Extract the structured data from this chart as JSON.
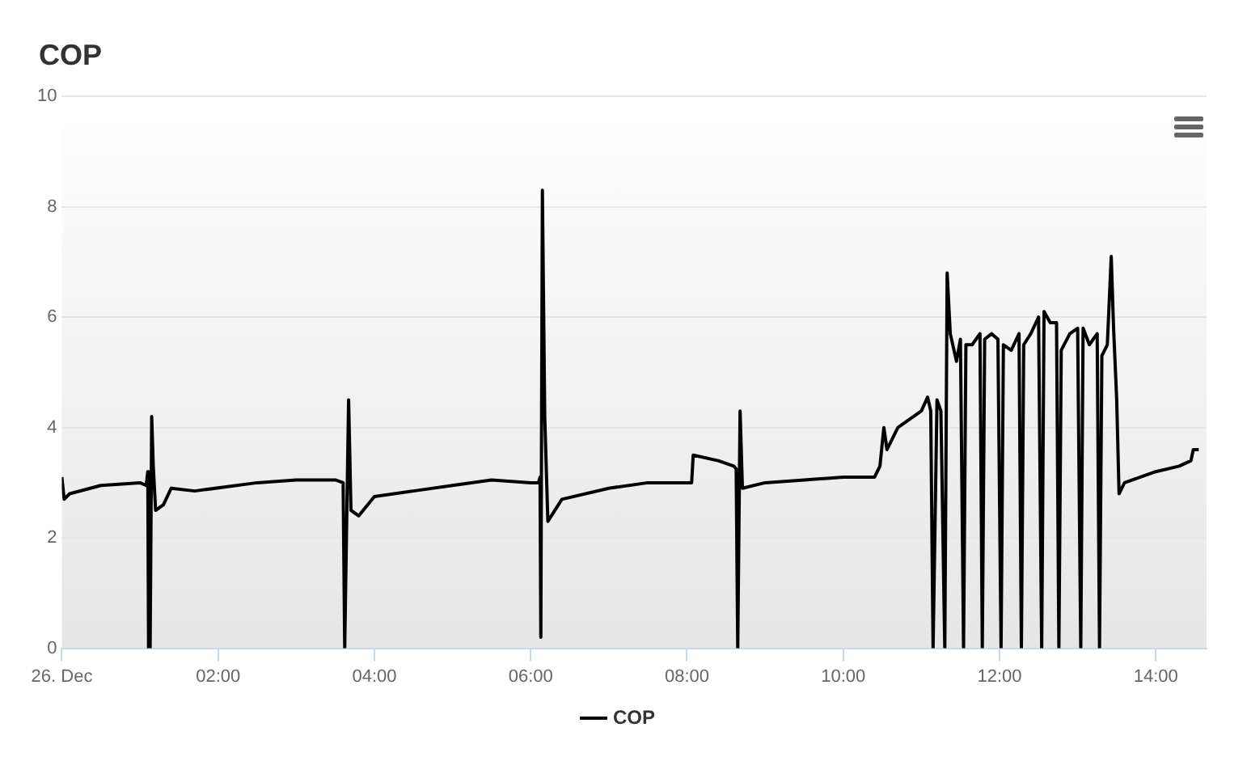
{
  "chart_data": {
    "type": "line",
    "title": "COP",
    "legend": "bottom",
    "grid": "y",
    "xlim": [
      0,
      14.65
    ],
    "xticks": [
      {
        "value": 0,
        "label": "26. Dec"
      },
      {
        "value": 2,
        "label": "02:00"
      },
      {
        "value": 4,
        "label": "04:00"
      },
      {
        "value": 6,
        "label": "06:00"
      },
      {
        "value": 8,
        "label": "08:00"
      },
      {
        "value": 10,
        "label": "10:00"
      },
      {
        "value": 12,
        "label": "12:00"
      },
      {
        "value": 14,
        "label": "14:00"
      }
    ],
    "ylim": [
      0,
      10
    ],
    "yticks": [
      0,
      2,
      4,
      6,
      8,
      10
    ],
    "series": [
      {
        "name": "COP",
        "color": "#000000",
        "x": [
          0,
          0.03,
          0.1,
          0.5,
          1.0,
          1.08,
          1.1,
          1.11,
          1.13,
          1.15,
          1.17,
          1.2,
          1.3,
          1.4,
          1.7,
          2.5,
          3.0,
          3.5,
          3.6,
          3.62,
          3.64,
          3.67,
          3.7,
          3.8,
          4.0,
          4.5,
          5.0,
          5.5,
          6.0,
          6.1,
          6.12,
          6.13,
          6.15,
          6.18,
          6.22,
          6.4,
          7.0,
          7.5,
          8.0,
          8.06,
          8.08,
          8.4,
          8.6,
          8.63,
          8.65,
          8.68,
          8.71,
          9.0,
          9.5,
          10.0,
          10.4,
          10.47,
          10.52,
          10.56,
          10.7,
          11.0,
          11.08,
          11.12,
          11.15,
          11.2,
          11.25,
          11.3,
          11.33,
          11.37,
          11.45,
          11.5,
          11.54,
          11.57,
          11.65,
          11.75,
          11.78,
          11.81,
          11.9,
          11.98,
          12.02,
          12.05,
          12.15,
          12.25,
          12.28,
          12.31,
          12.4,
          12.5,
          12.54,
          12.57,
          12.65,
          12.73,
          12.76,
          12.79,
          12.9,
          13.0,
          13.04,
          13.07,
          13.15,
          13.25,
          13.28,
          13.31,
          13.38,
          13.43,
          13.46,
          13.5,
          13.53,
          13.6,
          14.0,
          14.3,
          14.45,
          14.48,
          14.55
        ],
        "values": [
          3.1,
          2.7,
          2.8,
          2.95,
          3.0,
          2.95,
          3.2,
          0,
          0,
          4.2,
          3.3,
          2.5,
          2.6,
          2.9,
          2.85,
          3.0,
          3.05,
          3.05,
          3.0,
          0,
          1.8,
          4.5,
          2.5,
          2.4,
          2.75,
          2.85,
          2.95,
          3.05,
          3.0,
          3.0,
          3.1,
          0.2,
          8.3,
          4.2,
          2.3,
          2.7,
          2.9,
          3.0,
          3.0,
          3.0,
          3.5,
          3.4,
          3.3,
          3.25,
          0,
          4.3,
          2.9,
          3.0,
          3.05,
          3.1,
          3.1,
          3.3,
          4.0,
          3.6,
          4.0,
          4.3,
          4.55,
          4.3,
          0,
          4.5,
          4.3,
          0,
          6.8,
          5.7,
          5.2,
          5.6,
          0,
          5.5,
          5.5,
          5.7,
          0,
          5.6,
          5.7,
          5.6,
          0,
          5.5,
          5.4,
          5.7,
          0,
          5.5,
          5.7,
          6.0,
          0,
          6.1,
          5.9,
          5.9,
          0,
          5.4,
          5.7,
          5.8,
          0,
          5.8,
          5.5,
          5.7,
          0,
          5.3,
          5.5,
          7.1,
          5.8,
          4.5,
          2.8,
          3.0,
          3.2,
          3.3,
          3.4,
          3.6,
          3.6
        ]
      }
    ]
  }
}
